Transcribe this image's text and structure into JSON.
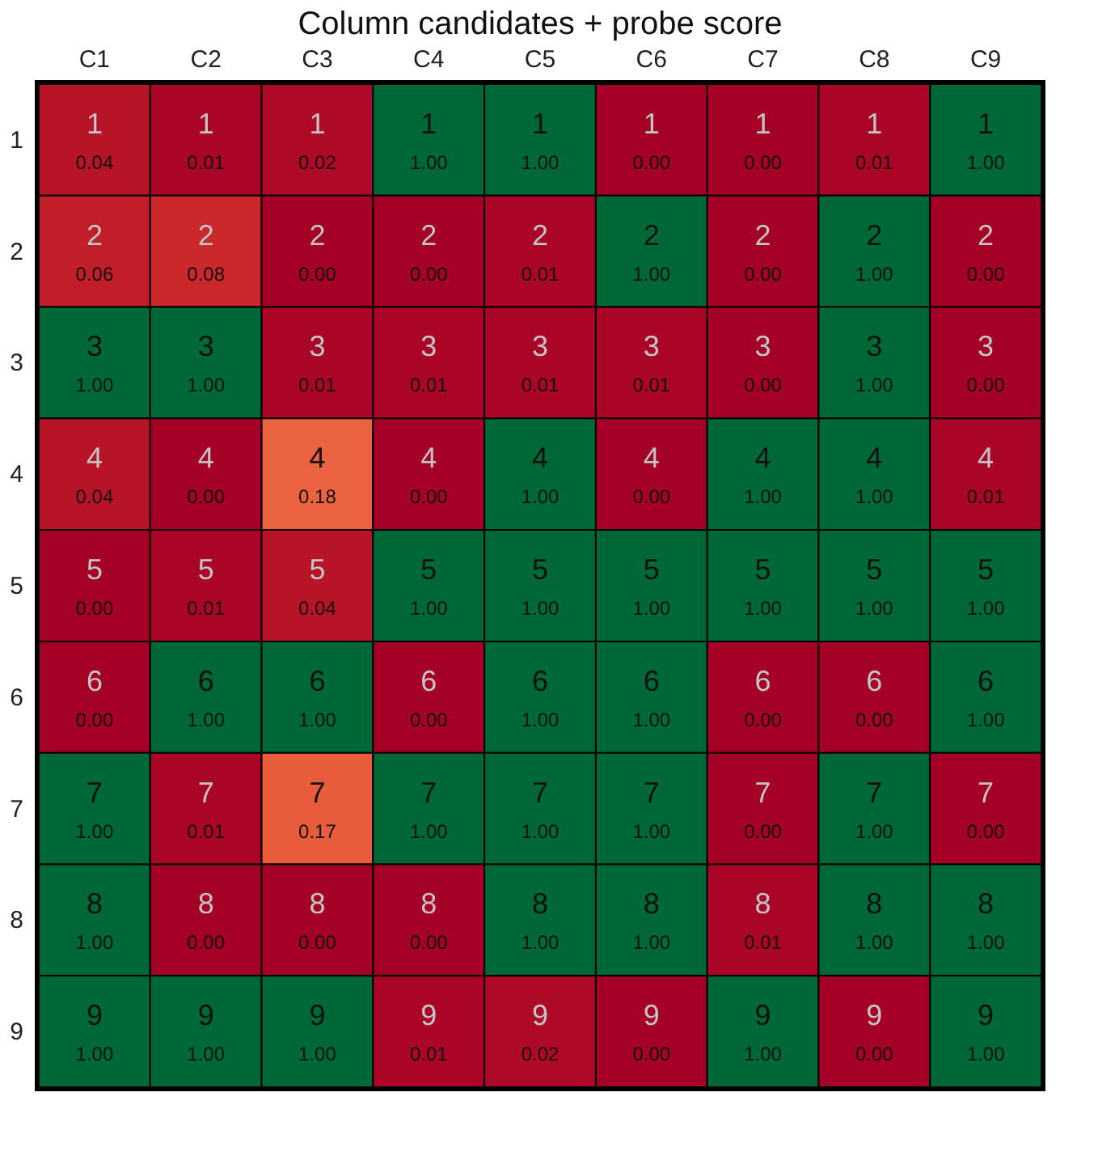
{
  "chart_data": {
    "type": "heatmap",
    "title": "Column candidates + probe score",
    "categories": [
      "C1",
      "C2",
      "C3",
      "C4",
      "C5",
      "C6",
      "C7",
      "C8",
      "C9"
    ],
    "y_categories": [
      "1",
      "2",
      "3",
      "4",
      "5",
      "6",
      "7",
      "8",
      "9"
    ],
    "cells": [
      [
        0.04,
        0.01,
        0.02,
        1.0,
        1.0,
        0.0,
        0.0,
        0.01,
        1.0
      ],
      [
        0.06,
        0.08,
        0.0,
        0.0,
        0.01,
        1.0,
        0.0,
        1.0,
        0.0
      ],
      [
        1.0,
        1.0,
        0.01,
        0.01,
        0.01,
        0.01,
        0.0,
        1.0,
        0.0
      ],
      [
        0.04,
        0.0,
        0.18,
        0.0,
        1.0,
        0.0,
        1.0,
        1.0,
        0.01
      ],
      [
        0.0,
        0.01,
        0.04,
        1.0,
        1.0,
        1.0,
        1.0,
        1.0,
        1.0
      ],
      [
        0.0,
        1.0,
        1.0,
        0.0,
        1.0,
        1.0,
        0.0,
        0.0,
        1.0
      ],
      [
        1.0,
        0.01,
        0.17,
        1.0,
        1.0,
        1.0,
        0.0,
        1.0,
        0.0
      ],
      [
        1.0,
        0.0,
        0.0,
        0.0,
        1.0,
        1.0,
        0.01,
        1.0,
        1.0
      ],
      [
        1.0,
        1.0,
        1.0,
        0.01,
        0.02,
        0.0,
        1.0,
        0.0,
        1.0
      ]
    ],
    "cell_labels": [
      [
        "0.04",
        "0.01",
        "0.02",
        "1.00",
        "1.00",
        "0.00",
        "0.00",
        "0.01",
        "1.00"
      ],
      [
        "0.06",
        "0.08",
        "0.00",
        "0.00",
        "0.01",
        "1.00",
        "0.00",
        "1.00",
        "0.00"
      ],
      [
        "1.00",
        "1.00",
        "0.01",
        "0.01",
        "0.01",
        "0.01",
        "0.00",
        "1.00",
        "0.00"
      ],
      [
        "0.04",
        "0.00",
        "0.18",
        "0.00",
        "1.00",
        "0.00",
        "1.00",
        "1.00",
        "0.01"
      ],
      [
        "0.00",
        "0.01",
        "0.04",
        "1.00",
        "1.00",
        "1.00",
        "1.00",
        "1.00",
        "1.00"
      ],
      [
        "0.00",
        "1.00",
        "1.00",
        "0.00",
        "1.00",
        "1.00",
        "0.00",
        "0.00",
        "1.00"
      ],
      [
        "1.00",
        "0.01",
        "0.17",
        "1.00",
        "1.00",
        "1.00",
        "0.00",
        "1.00",
        "0.00"
      ],
      [
        "1.00",
        "0.00",
        "0.00",
        "0.00",
        "1.00",
        "1.00",
        "0.01",
        "1.00",
        "1.00"
      ],
      [
        "1.00",
        "1.00",
        "1.00",
        "0.01",
        "0.02",
        "0.00",
        "1.00",
        "0.00",
        "1.00"
      ]
    ]
  }
}
